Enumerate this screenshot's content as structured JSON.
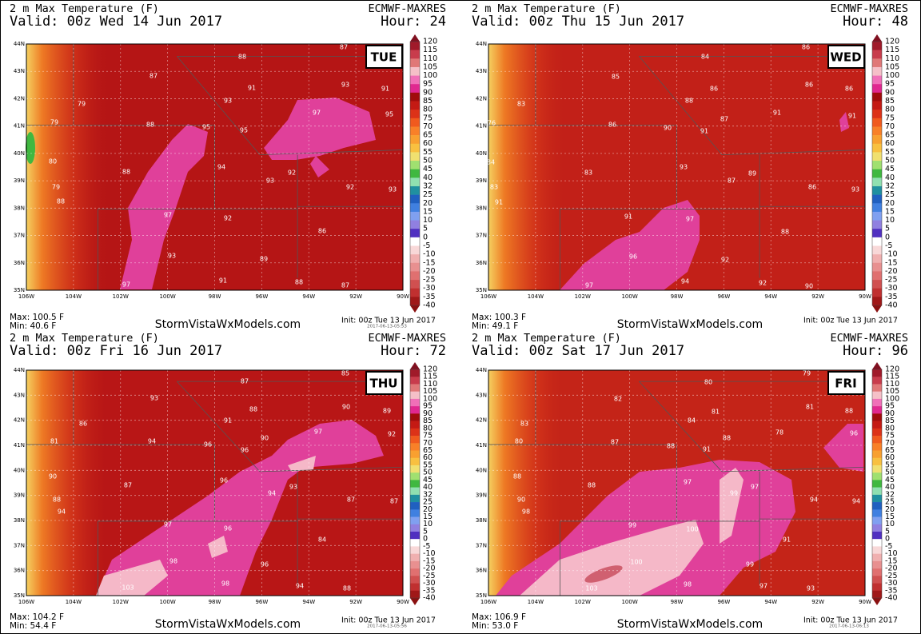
{
  "colorbar": {
    "labels": [
      120,
      115,
      110,
      105,
      100,
      95,
      90,
      85,
      80,
      75,
      70,
      65,
      60,
      55,
      50,
      45,
      40,
      32,
      25,
      20,
      15,
      10,
      5,
      0,
      -5,
      -10,
      -15,
      -20,
      -25,
      -30,
      -35,
      -40
    ],
    "colors": [
      "#a01a2a",
      "#c83c4c",
      "#e07878",
      "#f5c0c8",
      "#f070b8",
      "#e02890",
      "#a00c0c",
      "#c41a14",
      "#dc3218",
      "#f05a1e",
      "#f88028",
      "#f8a030",
      "#f8c040",
      "#f0e070",
      "#a0e070",
      "#40b840",
      "#90e0b0",
      "#2090a0",
      "#2060c0",
      "#4080e0",
      "#80a0f0",
      "#9080e0",
      "#5030c0",
      "#ffffff",
      "#f8d8d8",
      "#f0b0b0",
      "#e89090",
      "#e07070",
      "#d05050",
      "#c03030",
      "#a01818"
    ]
  },
  "map_axes": {
    "lat_labels": [
      "44N",
      "43N",
      "42N",
      "41N",
      "40N",
      "39N",
      "38N",
      "37N",
      "36N",
      "35N"
    ],
    "lon_labels": [
      "106W",
      "104W",
      "102W",
      "100W",
      "98W",
      "96W",
      "94W",
      "92W",
      "90W"
    ]
  },
  "panels": [
    {
      "title": "2 m Max Temperature (F)",
      "model": "ECMWF-MAXRES",
      "valid": "Valid: 00z Wed 14 Jun 2017",
      "hour": "Hour: 24",
      "day": "TUE",
      "point_labels": [
        88,
        87,
        87,
        91,
        93,
        91,
        79,
        93,
        97,
        95,
        79,
        88,
        95,
        95,
        80,
        94,
        92,
        88,
        93,
        92,
        93,
        79,
        88,
        97,
        92,
        86,
        93,
        89,
        97,
        91,
        88,
        87
      ],
      "max": "Max: 100.5 F",
      "min": "Min: 40.6 F",
      "site": "StormVistaWxModels.com",
      "init": "Init: 00z Tue 13 Jun 2017",
      "stamp": "2017-06-13-05:53"
    },
    {
      "title": "2 m Max Temperature (F)",
      "model": "ECMWF-MAXRES",
      "valid": "Valid: 00z Thu 15 Jun 2017",
      "hour": "Hour: 48",
      "day": "WED",
      "point_labels": [
        86,
        84,
        85,
        86,
        86,
        86,
        83,
        88,
        91,
        87,
        91,
        76,
        86,
        90,
        91,
        84,
        83,
        93,
        89,
        87,
        86,
        93,
        83,
        91,
        91,
        97,
        88,
        96,
        92,
        94,
        92,
        90,
        97
      ],
      "max": "Max: 100.3 F",
      "min": "Min: 49.1 F",
      "site": "StormVistaWxModels.com",
      "init": "Init: 00z Tue 13 Jun 2017"
    },
    {
      "title": "2 m Max Temperature (F)",
      "model": "ECMWF-MAXRES",
      "valid": "Valid: 00z Fri 16 Jun 2017",
      "hour": "Hour: 72",
      "day": "THU",
      "point_labels": [
        85,
        87,
        93,
        88,
        90,
        89,
        86,
        91,
        97,
        92,
        81,
        94,
        96,
        90,
        96,
        90,
        87,
        96,
        93,
        94,
        88,
        94,
        87,
        87,
        97,
        96,
        84,
        98,
        96,
        98,
        94,
        88,
        103
      ],
      "max": "Max: 104.2 F",
      "min": "Min: 54.4 F",
      "site": "StormVistaWxModels.com",
      "init": "Init: 00z Tue 13 Jun 2017",
      "stamp": "2017-06-13-05:56"
    },
    {
      "title": "2 m Max Temperature (F)",
      "model": "ECMWF-MAXRES",
      "valid": "Valid: 00z Sat 17 Jun 2017",
      "hour": "Hour: 96",
      "day": "FRI",
      "point_labels": [
        79,
        80,
        82,
        81,
        81,
        88,
        83,
        84,
        78,
        96,
        80,
        87,
        88,
        88,
        91,
        88,
        88,
        97,
        97,
        99,
        90,
        98,
        94,
        94,
        99,
        100,
        91,
        100,
        99,
        98,
        97,
        93,
        103
      ],
      "max": "Max: 106.9 F",
      "min": "Min: 53.0 F",
      "site": "StormVistaWxModels.com",
      "init": "Init: 00z Tue 13 Jun 2017",
      "stamp": "2017-06-13-06:13"
    }
  ]
}
